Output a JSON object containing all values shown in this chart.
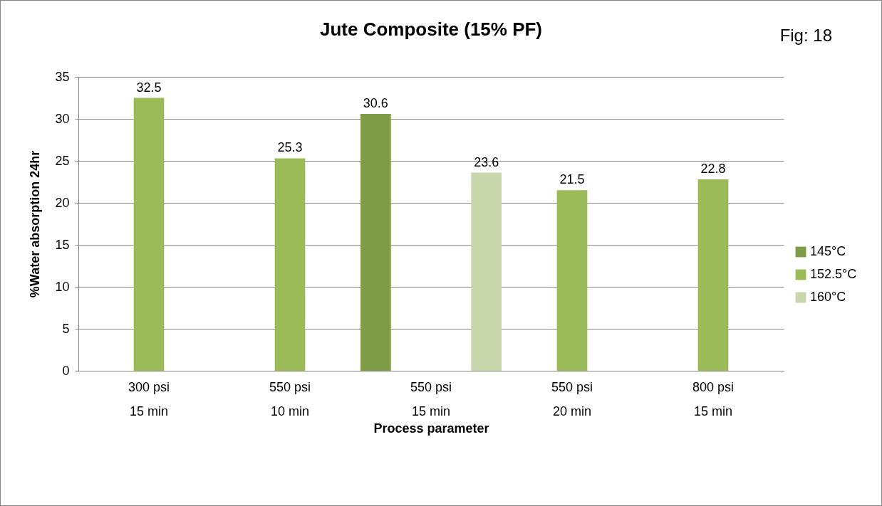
{
  "chart_data": {
    "type": "bar",
    "title": "Jute Composite (15% PF)",
    "xlabel": "Process parameter",
    "ylabel": "%Water absorption 24hr",
    "categories": [
      "300 psi\n15 min",
      "550 psi\n10 min",
      "550 psi\n15 min",
      "550 psi\n20 min",
      "800 psi\n15 min"
    ],
    "series": [
      {
        "name": "145°C",
        "color": "#7f9c47",
        "values": [
          null,
          null,
          30.6,
          null,
          null
        ]
      },
      {
        "name": "152.5°C",
        "color": "#9bbb59",
        "values": [
          32.5,
          25.3,
          null,
          21.5,
          22.8
        ]
      },
      {
        "name": "160°C",
        "color": "#c8d6ab",
        "values": [
          null,
          null,
          23.6,
          null,
          null
        ]
      }
    ],
    "ylim": [
      0,
      35
    ],
    "yticks": [
      0,
      5,
      10,
      15,
      20,
      25,
      30,
      35
    ],
    "grid": "y",
    "legend": "right",
    "data_labels": true,
    "annotations": [
      "Fig: 18"
    ]
  }
}
